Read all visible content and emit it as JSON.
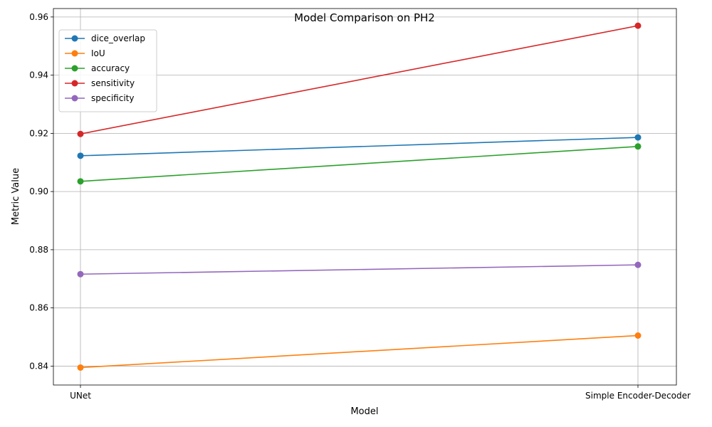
{
  "chart_data": {
    "type": "line",
    "title": "Model Comparison on PH2",
    "xlabel": "Model",
    "ylabel": "Metric Value",
    "categories": [
      "UNet",
      "Simple Encoder-Decoder"
    ],
    "ylim": [
      0.8335,
      0.9629
    ],
    "yticks": [
      0.84,
      0.86,
      0.88,
      0.9,
      0.92,
      0.94,
      0.96
    ],
    "ytick_labels": [
      "0.84",
      "0.86",
      "0.88",
      "0.90",
      "0.92",
      "0.94",
      "0.96"
    ],
    "grid": true,
    "legend_position": "top-left",
    "series": [
      {
        "name": "dice_overlap",
        "values": [
          0.9123,
          0.9186
        ],
        "color": "#1f77b4"
      },
      {
        "name": "IoU",
        "values": [
          0.8395,
          0.8505
        ],
        "color": "#ff7f0e"
      },
      {
        "name": "accuracy",
        "values": [
          0.9035,
          0.9155
        ],
        "color": "#2ca02c"
      },
      {
        "name": "sensitivity",
        "values": [
          0.9198,
          0.957
        ],
        "color": "#d62728"
      },
      {
        "name": "specificity",
        "values": [
          0.8716,
          0.8748
        ],
        "color": "#9467bd"
      }
    ]
  }
}
